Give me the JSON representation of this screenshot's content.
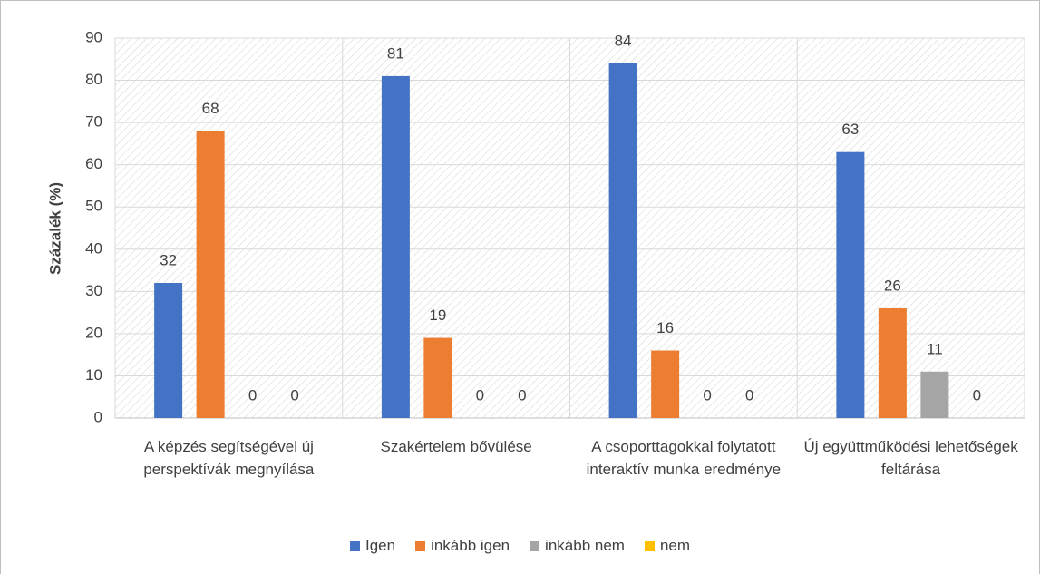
{
  "chart_data": {
    "type": "bar",
    "y_label": "Százalék (%)",
    "categories": [
      "A képzés segítségével új perspektívák megnyílása",
      "Szakértelem bővülése",
      "A csoporttagokkal folytatott interaktív munka eredménye",
      "Új együttműködési lehetőségek feltárása"
    ],
    "series": [
      {
        "name": "Igen",
        "color": "#4472c4",
        "values": [
          32,
          81,
          84,
          63
        ]
      },
      {
        "name": "inkább igen",
        "color": "#ed7d31",
        "values": [
          68,
          19,
          16,
          26
        ]
      },
      {
        "name": "inkább nem",
        "color": "#a5a5a5",
        "values": [
          0,
          0,
          0,
          11
        ]
      },
      {
        "name": "nem",
        "color": "#ffc000",
        "values": [
          0,
          0,
          0,
          0
        ]
      }
    ],
    "ylim": [
      0,
      90
    ],
    "yticks": [
      0,
      10,
      20,
      30,
      40,
      50,
      60,
      70,
      80,
      90
    ],
    "grid": true,
    "legend": "bottom"
  }
}
